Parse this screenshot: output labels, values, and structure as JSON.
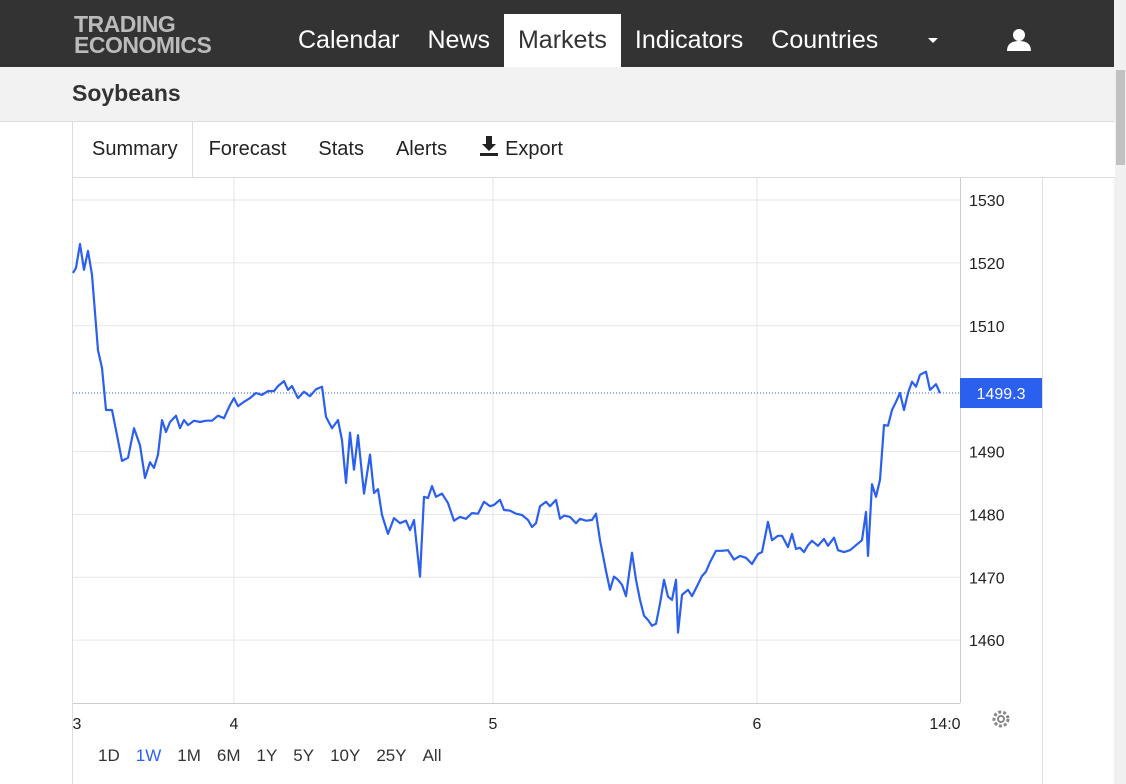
{
  "brand": [
    "TRADING",
    "ECONOMICS"
  ],
  "nav": [
    {
      "label": "Calendar",
      "active": false
    },
    {
      "label": "News",
      "active": false
    },
    {
      "label": "Markets",
      "active": true
    },
    {
      "label": "Indicators",
      "active": false
    },
    {
      "label": "Countries",
      "active": false
    }
  ],
  "page_title": "Soybeans",
  "tabs": [
    "Summary",
    "Forecast",
    "Stats",
    "Alerts",
    "Export"
  ],
  "range_buttons": [
    {
      "label": "1D",
      "active": false
    },
    {
      "label": "1W",
      "active": true
    },
    {
      "label": "1M",
      "active": false
    },
    {
      "label": "6M",
      "active": false
    },
    {
      "label": "1Y",
      "active": false
    },
    {
      "label": "5Y",
      "active": false
    },
    {
      "label": "10Y",
      "active": false
    },
    {
      "label": "25Y",
      "active": false
    },
    {
      "label": "All",
      "active": false
    }
  ],
  "chart_data": {
    "type": "line",
    "color": "#2b5fee",
    "grid": true,
    "last_value": 1499.3,
    "xlim": [
      0,
      887
    ],
    "ylim": [
      1450,
      1533.5
    ],
    "xticks": [
      {
        "value": 4,
        "label": "3"
      },
      {
        "value": 161,
        "label": "4"
      },
      {
        "value": 420,
        "label": "5"
      },
      {
        "value": 684,
        "label": "6"
      },
      {
        "value": 872,
        "label": "14:0"
      }
    ],
    "yticks": [
      1460,
      1470,
      1480,
      1490,
      1510,
      1520,
      1530
    ],
    "x": [
      0,
      3,
      7,
      11,
      15,
      19,
      25,
      29,
      33,
      39,
      45,
      49,
      55,
      61,
      67,
      72,
      77,
      81,
      85,
      89,
      93,
      97,
      103,
      107,
      111,
      115,
      121,
      127,
      133,
      139,
      145,
      151,
      157,
      161,
      165,
      171,
      177,
      183,
      189,
      195,
      201,
      205,
      211,
      215,
      219,
      225,
      231,
      237,
      243,
      249,
      253,
      259,
      265,
      269,
      273,
      277,
      281,
      285,
      291,
      297,
      301,
      305,
      309,
      315,
      321,
      327,
      333,
      337,
      341,
      347,
      351,
      355,
      359,
      363,
      369,
      375,
      381,
      387,
      393,
      399,
      405,
      411,
      417,
      421,
      427,
      431,
      437,
      443,
      449,
      455,
      459,
      463,
      467,
      473,
      477,
      483,
      487,
      491,
      497,
      503,
      507,
      513,
      519,
      523,
      527,
      533,
      537,
      541,
      545,
      549,
      553,
      559,
      563,
      567,
      571,
      575,
      579,
      583,
      587,
      591,
      595,
      599,
      603,
      605,
      609,
      615,
      619,
      625,
      629,
      633,
      637,
      643,
      649,
      655,
      661,
      667,
      673,
      679,
      685,
      689,
      695,
      699,
      705,
      709,
      715,
      719,
      723,
      727,
      731,
      735,
      739,
      745,
      751,
      755,
      761,
      765,
      771,
      777,
      783,
      789,
      793,
      795,
      799,
      803,
      807,
      811,
      815,
      819,
      823,
      827,
      831,
      835,
      839,
      843,
      847,
      853,
      857,
      863,
      867
    ],
    "values": [
      1518.4,
      1519.2,
      1523.0,
      1518.9,
      1521.9,
      1518.1,
      1506.1,
      1503.3,
      1496.6,
      1496.6,
      1491.8,
      1488.5,
      1489.0,
      1493.7,
      1491.0,
      1485.8,
      1488.3,
      1487.4,
      1489.5,
      1495.0,
      1493.1,
      1494.7,
      1495.7,
      1493.7,
      1495.0,
      1494.2,
      1494.9,
      1494.7,
      1494.9,
      1494.9,
      1495.7,
      1495.3,
      1497.4,
      1498.5,
      1497.2,
      1497.9,
      1498.5,
      1499.3,
      1499.0,
      1499.6,
      1499.6,
      1500.4,
      1501.2,
      1499.8,
      1500.4,
      1498.5,
      1499.5,
      1498.8,
      1499.9,
      1500.3,
      1495.5,
      1493.7,
      1495.0,
      1491.8,
      1485.0,
      1493.0,
      1487.1,
      1492.6,
      1483.3,
      1489.5,
      1483.4,
      1484.0,
      1479.9,
      1476.9,
      1479.4,
      1478.6,
      1479.0,
      1477.5,
      1479.1,
      1470.1,
      1482.8,
      1482.6,
      1484.5,
      1482.8,
      1483.3,
      1481.8,
      1479.0,
      1479.6,
      1479.3,
      1480.2,
      1480.1,
      1482.0,
      1481.3,
      1481.5,
      1482.3,
      1480.7,
      1480.6,
      1480.1,
      1479.9,
      1479.1,
      1478.0,
      1478.6,
      1481.3,
      1482.0,
      1481.3,
      1482.3,
      1479.3,
      1479.8,
      1479.6,
      1478.6,
      1479.3,
      1479.0,
      1479.1,
      1480.1,
      1475.9,
      1471.0,
      1468.0,
      1470.1,
      1469.6,
      1468.8,
      1467.0,
      1473.9,
      1469.6,
      1466.4,
      1463.9,
      1463.2,
      1462.3,
      1462.6,
      1465.8,
      1469.6,
      1466.9,
      1466.4,
      1469.6,
      1461.2,
      1467.2,
      1468.0,
      1467.0,
      1468.9,
      1470.2,
      1470.9,
      1472.4,
      1474.2,
      1474.2,
      1474.3,
      1472.8,
      1473.4,
      1473.1,
      1472.1,
      1473.7,
      1474.0,
      1478.8,
      1475.9,
      1476.6,
      1476.6,
      1474.8,
      1476.9,
      1474.5,
      1474.7,
      1474.0,
      1475.1,
      1475.8,
      1475.0,
      1476.1,
      1475.0,
      1476.3,
      1474.3,
      1474.0,
      1474.3,
      1475.1,
      1475.9,
      1480.4,
      1473.4,
      1484.8,
      1482.8,
      1485.5,
      1494.2,
      1494.1,
      1496.6,
      1497.9,
      1499.3,
      1496.6,
      1499.3,
      1501.1,
      1500.3,
      1502.2,
      1502.7,
      1499.8,
      1500.7,
      1499.3
    ]
  }
}
